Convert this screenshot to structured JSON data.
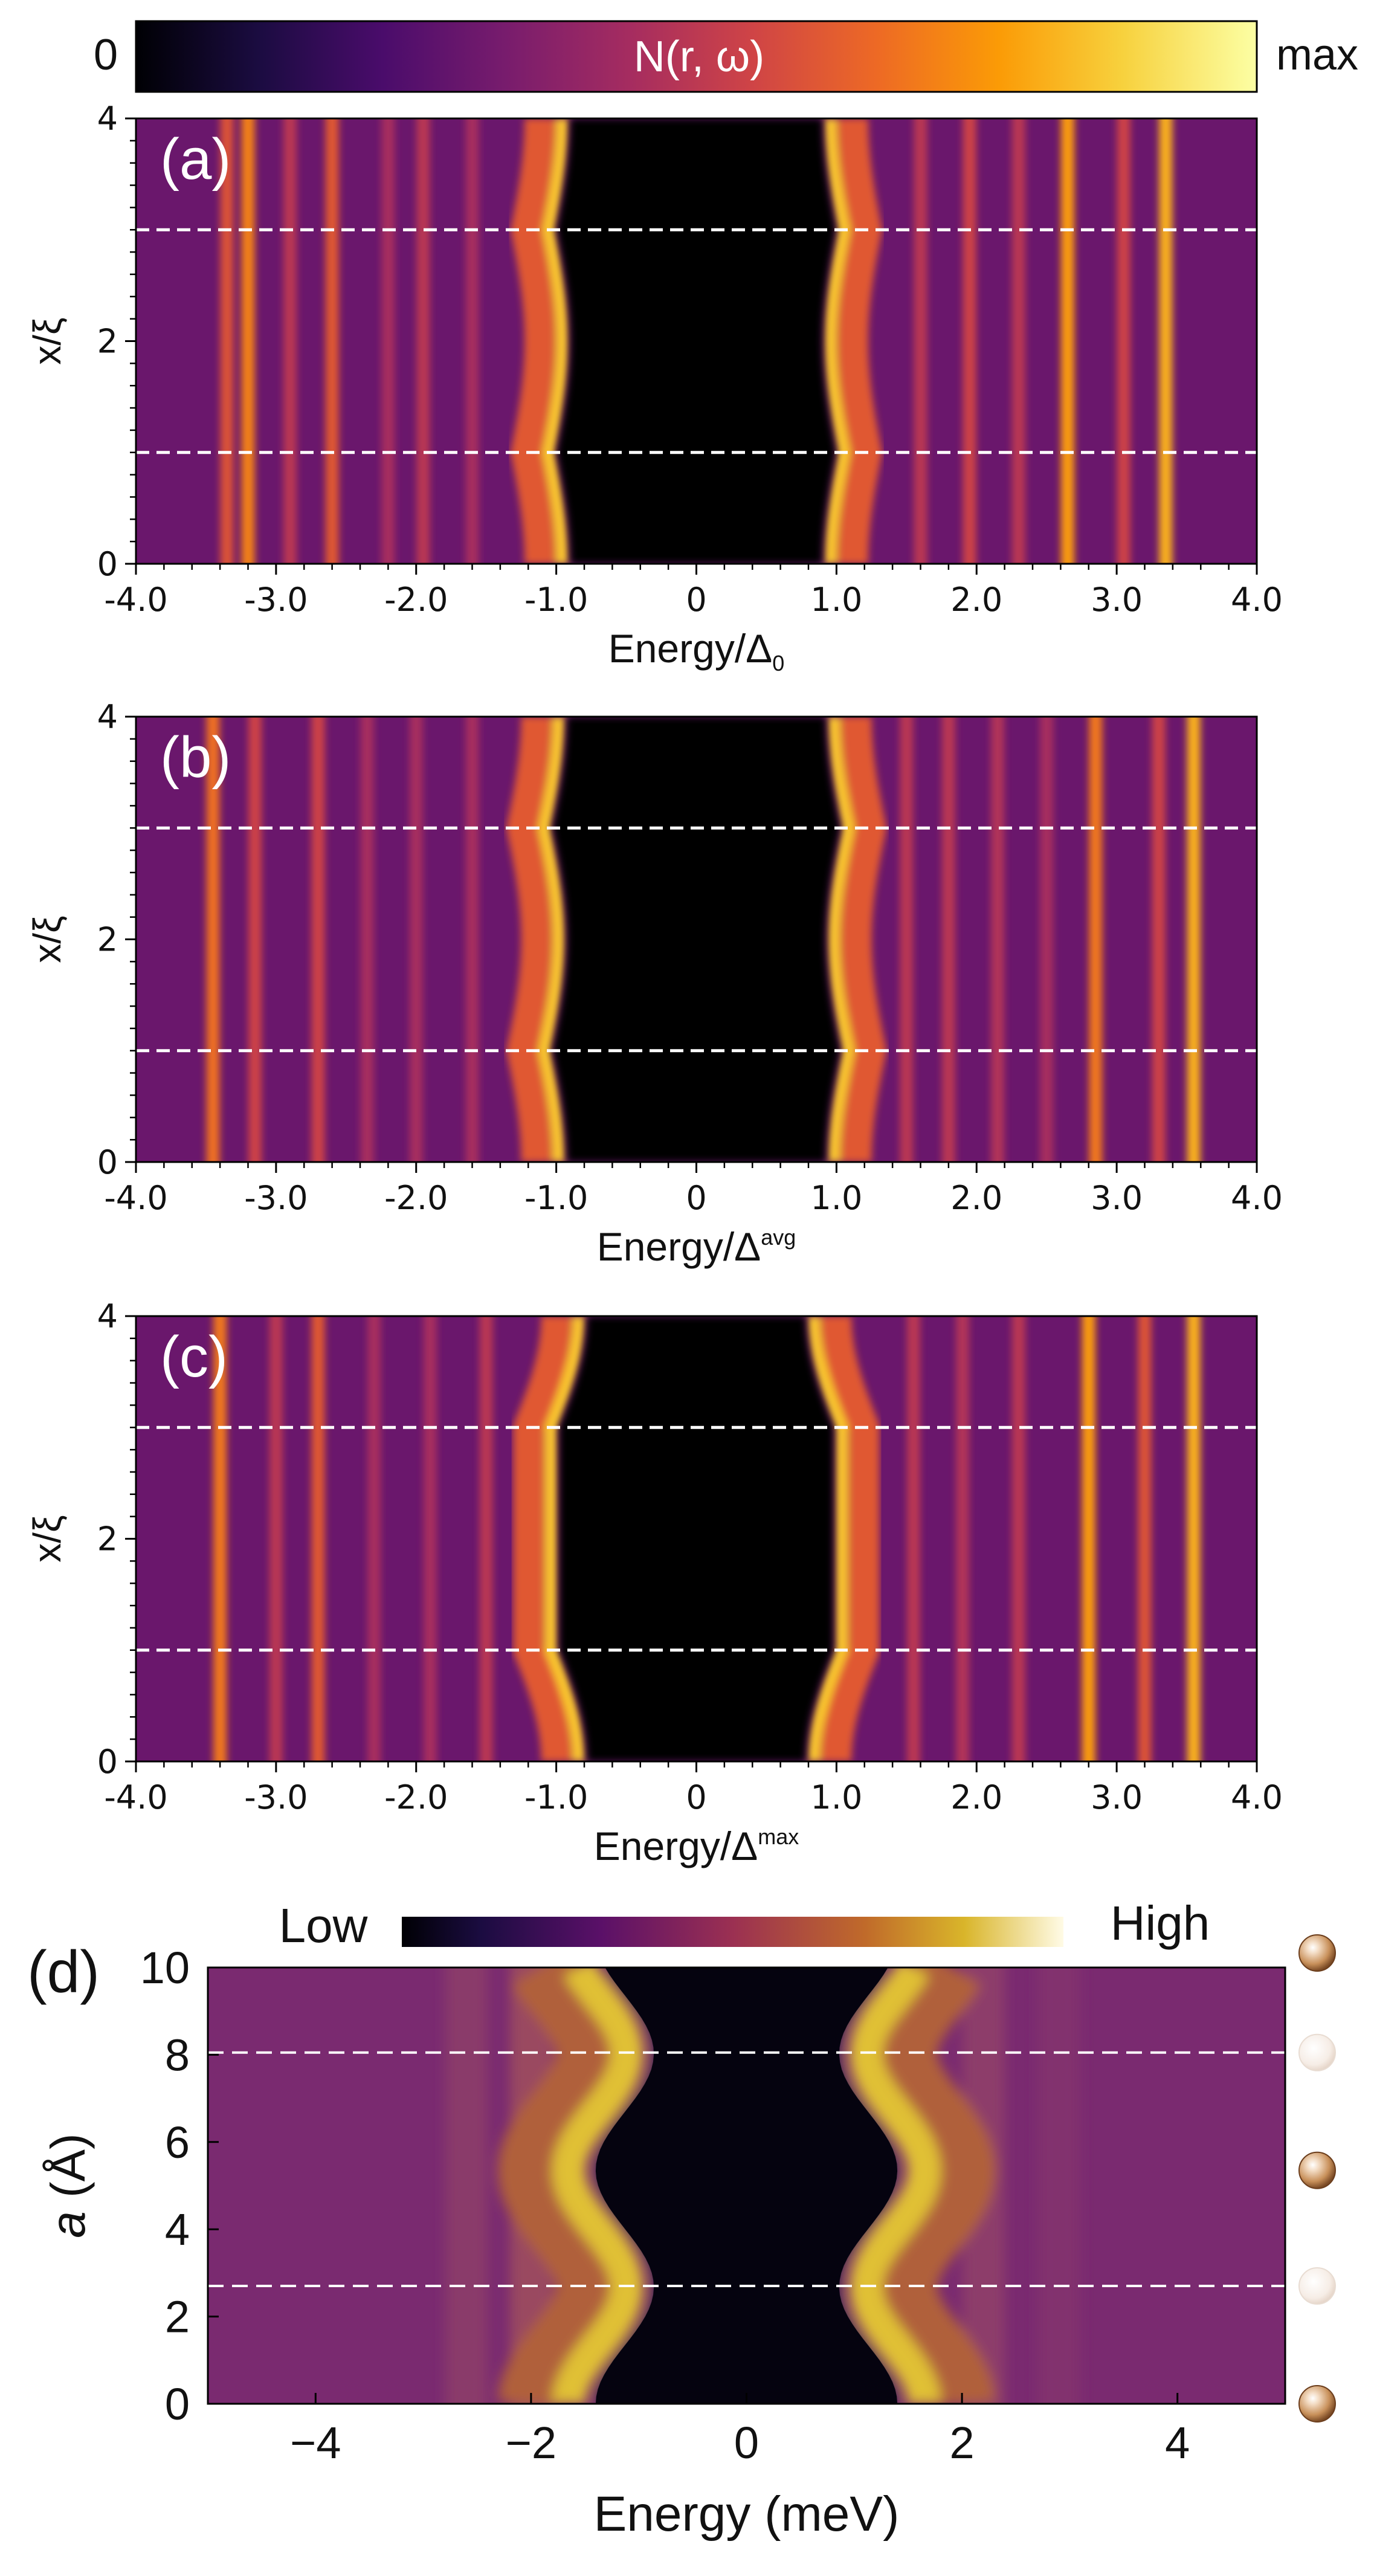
{
  "colorbar_top": {
    "label": "N(r, ω)",
    "min_label": "0",
    "max_label": "max"
  },
  "colorbar_bottom": {
    "low_label": "Low",
    "high_label": "High"
  },
  "colors": {
    "inferno": [
      "#000004",
      "#1b0c41",
      "#4a0c6b",
      "#781c6d",
      "#a52c60",
      "#cf4446",
      "#ed6925",
      "#fb9b06",
      "#f7d13d",
      "#fcffa4"
    ],
    "guide_line": "#ffffff",
    "atom_fill": "#c8905a"
  },
  "chart_data": [
    {
      "type": "heatmap",
      "panel": "(a)",
      "title": "",
      "xlabel": "Energy/Δ",
      "xlabel_sub": "0",
      "ylabel": "x/ξ",
      "xlim": [
        -4.0,
        4.0
      ],
      "ylim": [
        0,
        4
      ],
      "xticks": [
        -4.0,
        -3.0,
        -2.0,
        -1.0,
        0,
        1.0,
        2.0,
        3.0,
        4.0
      ],
      "xtick_labels": [
        "-4.0",
        "-3.0",
        "-2.0",
        "-1.0",
        "0",
        "1.0",
        "2.0",
        "3.0",
        "4.0"
      ],
      "yticks": [
        0,
        2,
        4
      ],
      "ytick_labels": [
        "0",
        "2",
        "4"
      ],
      "dashed_lines_y": [
        1,
        3
      ],
      "gap_edge_energy_range": [
        0.78,
        1.02
      ],
      "peak_lines": [
        {
          "energy": -3.35,
          "intensity": 0.6
        },
        {
          "energy": -3.2,
          "intensity": 0.72
        },
        {
          "energy": -2.9,
          "intensity": 0.5
        },
        {
          "energy": -2.6,
          "intensity": 0.62
        },
        {
          "energy": -2.2,
          "intensity": 0.45
        },
        {
          "energy": -1.95,
          "intensity": 0.5
        },
        {
          "energy": -1.6,
          "intensity": 0.45
        },
        {
          "energy": 1.6,
          "intensity": 0.5
        },
        {
          "energy": 1.95,
          "intensity": 0.55
        },
        {
          "energy": 2.3,
          "intensity": 0.5
        },
        {
          "energy": 2.65,
          "intensity": 0.78
        },
        {
          "energy": 3.05,
          "intensity": 0.55
        },
        {
          "energy": 3.35,
          "intensity": 0.82
        }
      ]
    },
    {
      "type": "heatmap",
      "panel": "(b)",
      "title": "",
      "xlabel": "Energy/Δ",
      "xlabel_sup": "avg",
      "ylabel": "x/ξ",
      "xlim": [
        -4.0,
        4.0
      ],
      "ylim": [
        0,
        4
      ],
      "xticks": [
        -4.0,
        -3.0,
        -2.0,
        -1.0,
        0,
        1.0,
        2.0,
        3.0,
        4.0
      ],
      "xtick_labels": [
        "-4.0",
        "-3.0",
        "-2.0",
        "-1.0",
        "0",
        "1.0",
        "2.0",
        "3.0",
        "4.0"
      ],
      "yticks": [
        0,
        2,
        4
      ],
      "ytick_labels": [
        "0",
        "2",
        "4"
      ],
      "dashed_lines_y": [
        1,
        3
      ],
      "gap_edge_energy_range": [
        0.82,
        1.05
      ],
      "peak_lines": [
        {
          "energy": -3.45,
          "intensity": 0.68
        },
        {
          "energy": -3.15,
          "intensity": 0.55
        },
        {
          "energy": -2.7,
          "intensity": 0.55
        },
        {
          "energy": -2.35,
          "intensity": 0.45
        },
        {
          "energy": -2.0,
          "intensity": 0.45
        },
        {
          "energy": -1.6,
          "intensity": 0.45
        },
        {
          "energy": 1.5,
          "intensity": 0.5
        },
        {
          "energy": 1.8,
          "intensity": 0.5
        },
        {
          "energy": 2.15,
          "intensity": 0.48
        },
        {
          "energy": 2.5,
          "intensity": 0.45
        },
        {
          "energy": 2.85,
          "intensity": 0.7
        },
        {
          "energy": 3.3,
          "intensity": 0.55
        },
        {
          "energy": 3.55,
          "intensity": 0.82
        }
      ]
    },
    {
      "type": "heatmap",
      "panel": "(c)",
      "title": "",
      "xlabel": "Energy/Δ",
      "xlabel_sup": "max",
      "ylabel": "x/ξ",
      "xlim": [
        -4.0,
        4.0
      ],
      "ylim": [
        0,
        4
      ],
      "xticks": [
        -4.0,
        -3.0,
        -2.0,
        -1.0,
        0,
        1.0,
        2.0,
        3.0,
        4.0
      ],
      "xtick_labels": [
        "-4.0",
        "-3.0",
        "-2.0",
        "-1.0",
        "0",
        "1.0",
        "2.0",
        "3.0",
        "4.0"
      ],
      "yticks": [
        0,
        2,
        4
      ],
      "ytick_labels": [
        "0",
        "2",
        "4"
      ],
      "dashed_lines_y": [
        1,
        3
      ],
      "gap_edge_energy_range": [
        0.78,
        1.0
      ],
      "peak_lines": [
        {
          "energy": -3.4,
          "intensity": 0.7
        },
        {
          "energy": -3.0,
          "intensity": 0.5
        },
        {
          "energy": -2.7,
          "intensity": 0.62
        },
        {
          "energy": -2.3,
          "intensity": 0.45
        },
        {
          "energy": -1.9,
          "intensity": 0.45
        },
        {
          "energy": -1.5,
          "intensity": 0.5
        },
        {
          "energy": 1.55,
          "intensity": 0.5
        },
        {
          "energy": 1.9,
          "intensity": 0.48
        },
        {
          "energy": 2.3,
          "intensity": 0.5
        },
        {
          "energy": 2.8,
          "intensity": 0.78
        },
        {
          "energy": 3.2,
          "intensity": 0.6
        },
        {
          "energy": 3.55,
          "intensity": 0.82
        }
      ]
    },
    {
      "type": "heatmap",
      "panel": "(d)",
      "title": "",
      "xlabel": "Energy (meV)",
      "ylabel": "a (Å)",
      "ylabel_italic_part": "a",
      "ylabel_rest": " (Å)",
      "xlim": [
        -5,
        5
      ],
      "ylim": [
        0,
        10
      ],
      "xticks": [
        -4,
        -2,
        0,
        2,
        4
      ],
      "xtick_labels": [
        "−4",
        "−2",
        "0",
        "2",
        "4"
      ],
      "yticks": [
        0,
        2,
        4,
        6,
        8,
        10
      ],
      "ytick_labels": [
        "0",
        "2",
        "4",
        "6",
        "8",
        "10"
      ],
      "dashed_lines_y": [
        2.7,
        8.05
      ],
      "gap_edge_energy_range": [
        1.0,
        1.6
      ],
      "atom_positions": [
        {
          "a": 0,
          "faded": false
        },
        {
          "a": 2.7,
          "faded": true
        },
        {
          "a": 5.35,
          "faded": false
        },
        {
          "a": 8.05,
          "faded": true
        },
        {
          "a": 10.7,
          "faded": false
        }
      ]
    }
  ]
}
